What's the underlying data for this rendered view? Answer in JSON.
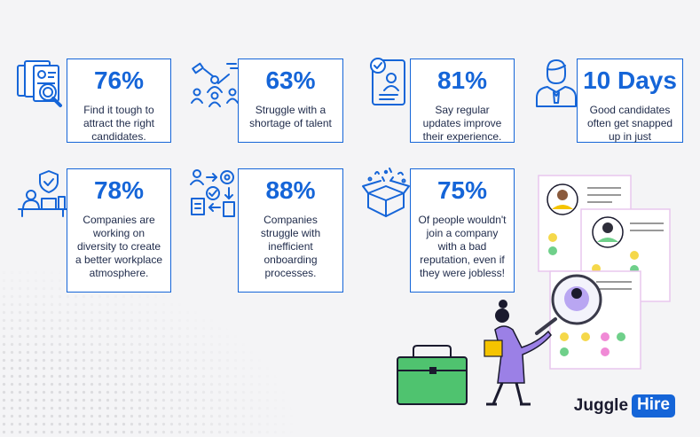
{
  "stats": [
    {
      "value": "76%",
      "text": "Find it tough to attract the right candidates.",
      "icon": "resume-magnifier-icon"
    },
    {
      "value": "63%",
      "text": "Struggle with a shortage of talent",
      "icon": "recruiter-pointing-icon"
    },
    {
      "value": "81%",
      "text": "Say regular updates improve their experience.",
      "icon": "profile-document-icon"
    },
    {
      "value": "10 Days",
      "text": "Good candidates often get snapped up in just",
      "icon": "businessman-icon"
    },
    {
      "value": "78%",
      "text": "Companies are working on diversity to create a better workplace atmosphere.",
      "icon": "shield-desk-worker-icon"
    },
    {
      "value": "88%",
      "text": "Companies struggle with inefficient onboarding processes.",
      "icon": "onboarding-process-icon"
    },
    {
      "value": "75%",
      "text": "Of people wouldn't join a company with a bad reputation, even if they were jobless!",
      "icon": "open-box-confetti-icon"
    }
  ],
  "brand": {
    "part1": "Juggle",
    "part2": "Hire"
  },
  "colors": {
    "accent": "#1565d8",
    "text": "#1e2a4a",
    "background": "#f4f4f6"
  }
}
